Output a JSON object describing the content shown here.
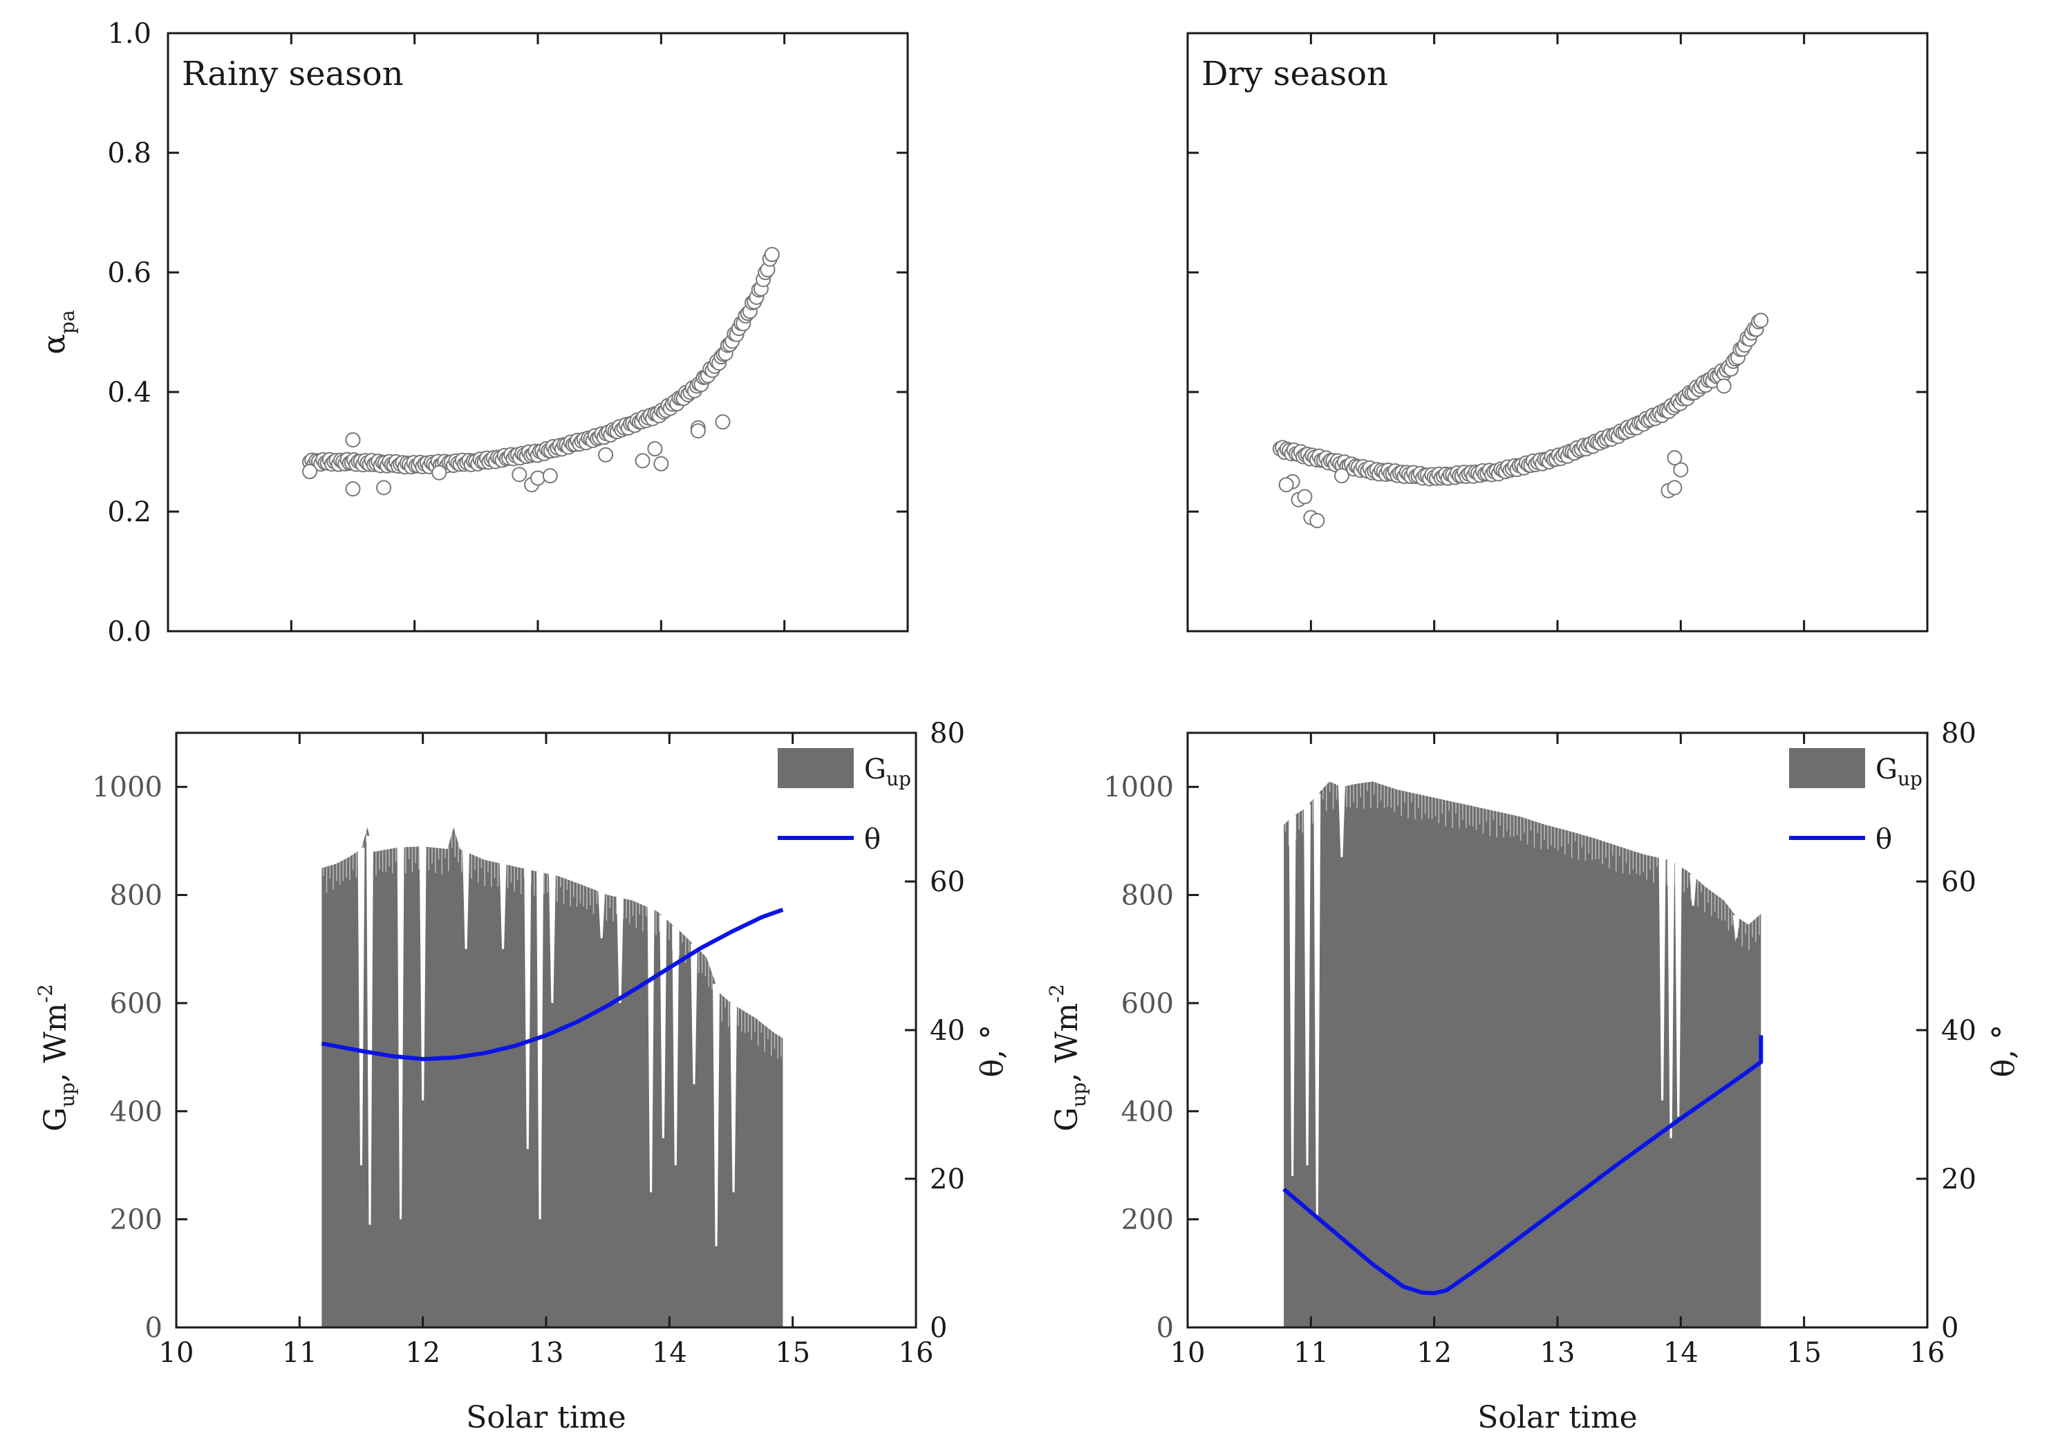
{
  "colors": {
    "frame": "#1a1a1a",
    "area": "#6e6e6e",
    "line": "#0a14e6",
    "marker_edge": "#777777",
    "marker_fill": "#ffffff"
  },
  "chart_data": [
    {
      "id": "rainy_alpha",
      "type": "scatter",
      "title": "Rainy season",
      "ylabel": "α",
      "ylabel_sub": "pa",
      "xlim": [
        10,
        16
      ],
      "ylim": [
        0,
        1
      ],
      "yticks": [
        "0.0",
        "0.2",
        "0.4",
        "0.6",
        "0.8",
        "1.0"
      ],
      "series": [
        {
          "name": "α_pa",
          "marker": "open-circle",
          "curve": [
            [
              11.15,
              0.283
            ],
            [
              11.5,
              0.283
            ],
            [
              12.0,
              0.278
            ],
            [
              12.5,
              0.283
            ],
            [
              13.0,
              0.298
            ],
            [
              13.5,
              0.325
            ],
            [
              14.0,
              0.365
            ],
            [
              14.3,
              0.41
            ],
            [
              14.5,
              0.46
            ],
            [
              14.7,
              0.53
            ],
            [
              14.8,
              0.57
            ],
            [
              14.9,
              0.63
            ]
          ],
          "outliers": [
            [
              11.15,
              0.267
            ],
            [
              11.5,
              0.32
            ],
            [
              11.5,
              0.238
            ],
            [
              11.75,
              0.24
            ],
            [
              12.2,
              0.265
            ],
            [
              12.85,
              0.262
            ],
            [
              12.95,
              0.245
            ],
            [
              13.0,
              0.256
            ],
            [
              13.1,
              0.26
            ],
            [
              13.55,
              0.295
            ],
            [
              13.85,
              0.285
            ],
            [
              13.95,
              0.305
            ],
            [
              14.0,
              0.28
            ],
            [
              14.3,
              0.34
            ],
            [
              14.3,
              0.335
            ],
            [
              14.5,
              0.35
            ]
          ]
        }
      ]
    },
    {
      "id": "dry_alpha",
      "type": "scatter",
      "title": "Dry season",
      "xlim": [
        10,
        16
      ],
      "ylim": [
        0,
        1
      ],
      "series": [
        {
          "name": "α_pa",
          "marker": "open-circle",
          "curve": [
            [
              10.75,
              0.305
            ],
            [
              11.0,
              0.292
            ],
            [
              11.5,
              0.268
            ],
            [
              12.0,
              0.258
            ],
            [
              12.5,
              0.266
            ],
            [
              13.0,
              0.29
            ],
            [
              13.5,
              0.33
            ],
            [
              13.9,
              0.37
            ],
            [
              14.2,
              0.415
            ],
            [
              14.4,
              0.44
            ],
            [
              14.55,
              0.49
            ],
            [
              14.65,
              0.52
            ]
          ],
          "outliers": [
            [
              10.85,
              0.25
            ],
            [
              10.8,
              0.245
            ],
            [
              10.9,
              0.22
            ],
            [
              10.95,
              0.225
            ],
            [
              11.0,
              0.19
            ],
            [
              11.05,
              0.185
            ],
            [
              11.25,
              0.26
            ],
            [
              13.9,
              0.235
            ],
            [
              13.95,
              0.24
            ],
            [
              14.0,
              0.27
            ],
            [
              13.95,
              0.29
            ],
            [
              14.35,
              0.41
            ]
          ]
        }
      ]
    },
    {
      "id": "rainy_gup",
      "type": "area",
      "xlabel": "Solar time",
      "ylabel": "G",
      "ylabel_sub": "up",
      "ylabel_rest": ", Wm",
      "ylabel_sup": "-2",
      "y2label": "θ, °",
      "xlim": [
        10,
        16
      ],
      "ylim": [
        0,
        1100
      ],
      "y2lim": [
        0,
        80
      ],
      "xticks": [
        "10",
        "11",
        "12",
        "13",
        "14",
        "15",
        "16"
      ],
      "yticks": [
        "0",
        "200",
        "400",
        "600",
        "800",
        "1000"
      ],
      "y2ticks": [
        "0",
        "20",
        "40",
        "60",
        "80"
      ],
      "legend": [
        "G",
        "θ"
      ],
      "legend_sub": "up",
      "series": [
        {
          "name": "G_up",
          "type": "area",
          "envelope": [
            [
              11.18,
              0
            ],
            [
              11.18,
              850
            ],
            [
              11.3,
              858
            ],
            [
              11.4,
              870
            ],
            [
              11.5,
              885
            ],
            [
              11.55,
              925
            ],
            [
              11.6,
              880
            ],
            [
              11.8,
              888
            ],
            [
              12.0,
              890
            ],
            [
              12.2,
              885
            ],
            [
              12.25,
              925
            ],
            [
              12.3,
              885
            ],
            [
              12.5,
              865
            ],
            [
              12.7,
              855
            ],
            [
              12.9,
              845
            ],
            [
              13.1,
              835
            ],
            [
              13.3,
              818
            ],
            [
              13.5,
              800
            ],
            [
              13.7,
              790
            ],
            [
              13.9,
              770
            ],
            [
              14.1,
              730
            ],
            [
              14.3,
              685
            ],
            [
              14.4,
              620
            ],
            [
              14.5,
              600
            ],
            [
              14.7,
              572
            ],
            [
              14.85,
              545
            ],
            [
              14.92,
              535
            ],
            [
              14.92,
              0
            ]
          ],
          "dips": [
            [
              11.5,
              300
            ],
            [
              11.57,
              190
            ],
            [
              11.82,
              200
            ],
            [
              12.0,
              420
            ],
            [
              12.35,
              700
            ],
            [
              12.65,
              700
            ],
            [
              12.85,
              330
            ],
            [
              12.95,
              200
            ],
            [
              13.05,
              600
            ],
            [
              13.45,
              720
            ],
            [
              13.6,
              600
            ],
            [
              13.85,
              250
            ],
            [
              13.95,
              350
            ],
            [
              14.05,
              300
            ],
            [
              14.2,
              450
            ],
            [
              14.38,
              150
            ],
            [
              14.52,
              250
            ]
          ]
        },
        {
          "name": "θ",
          "type": "line",
          "axis": "y2",
          "points": [
            [
              11.18,
              38.2
            ],
            [
              11.5,
              37.2
            ],
            [
              11.75,
              36.5
            ],
            [
              12.0,
              36.1
            ],
            [
              12.25,
              36.3
            ],
            [
              12.5,
              36.9
            ],
            [
              12.75,
              37.9
            ],
            [
              13.0,
              39.3
            ],
            [
              13.25,
              41.1
            ],
            [
              13.5,
              43.3
            ],
            [
              13.75,
              45.8
            ],
            [
              14.0,
              48.4
            ],
            [
              14.25,
              51.0
            ],
            [
              14.5,
              53.2
            ],
            [
              14.75,
              55.2
            ],
            [
              14.92,
              56.2
            ]
          ]
        }
      ]
    },
    {
      "id": "dry_gup",
      "type": "area",
      "xlabel": "Solar time",
      "ylabel": "G",
      "ylabel_sub": "up",
      "ylabel_rest": ", Wm",
      "ylabel_sup": "-2",
      "y2label": "θ, °",
      "xlim": [
        10,
        16
      ],
      "ylim": [
        0,
        1100
      ],
      "y2lim": [
        0,
        80
      ],
      "xticks": [
        "10",
        "11",
        "12",
        "13",
        "14",
        "15",
        "16"
      ],
      "yticks": [
        "0",
        "200",
        "400",
        "600",
        "800",
        "1000"
      ],
      "y2ticks": [
        "0",
        "20",
        "40",
        "60",
        "80"
      ],
      "legend": [
        "G",
        "θ"
      ],
      "legend_sub": "up",
      "series": [
        {
          "name": "G_up",
          "type": "area",
          "envelope": [
            [
              10.78,
              0
            ],
            [
              10.78,
              930
            ],
            [
              10.85,
              945
            ],
            [
              10.95,
              960
            ],
            [
              11.05,
              985
            ],
            [
              11.15,
              1010
            ],
            [
              11.25,
              1000
            ],
            [
              11.35,
              1005
            ],
            [
              11.5,
              1010
            ],
            [
              11.7,
              995
            ],
            [
              11.9,
              985
            ],
            [
              12.1,
              975
            ],
            [
              12.3,
              965
            ],
            [
              12.5,
              955
            ],
            [
              12.7,
              945
            ],
            [
              12.9,
              930
            ],
            [
              13.1,
              918
            ],
            [
              13.3,
              905
            ],
            [
              13.5,
              890
            ],
            [
              13.7,
              875
            ],
            [
              13.9,
              865
            ],
            [
              14.05,
              845
            ],
            [
              14.2,
              815
            ],
            [
              14.35,
              790
            ],
            [
              14.45,
              760
            ],
            [
              14.55,
              745
            ],
            [
              14.65,
              765
            ],
            [
              14.65,
              0
            ]
          ],
          "dips": [
            [
              10.85,
              280
            ],
            [
              10.97,
              300
            ],
            [
              11.05,
              200
            ],
            [
              11.25,
              870
            ],
            [
              13.85,
              420
            ],
            [
              13.92,
              350
            ],
            [
              13.98,
              390
            ],
            [
              14.1,
              780
            ],
            [
              14.45,
              720
            ]
          ]
        },
        {
          "name": "θ",
          "type": "line",
          "axis": "y2",
          "points": [
            [
              10.78,
              18.6
            ],
            [
              11.0,
              15.5
            ],
            [
              11.25,
              12.0
            ],
            [
              11.5,
              8.5
            ],
            [
              11.75,
              5.5
            ],
            [
              11.9,
              4.7
            ],
            [
              12.0,
              4.6
            ],
            [
              12.1,
              5.0
            ],
            [
              12.3,
              7.3
            ],
            [
              12.5,
              9.7
            ],
            [
              12.75,
              12.8
            ],
            [
              13.0,
              15.9
            ],
            [
              13.25,
              19.0
            ],
            [
              13.5,
              22.1
            ],
            [
              13.75,
              25.1
            ],
            [
              14.0,
              28.1
            ],
            [
              14.25,
              31.0
            ],
            [
              14.5,
              33.9
            ],
            [
              14.65,
              35.7
            ],
            [
              14.65,
              39.3
            ]
          ]
        }
      ]
    }
  ]
}
